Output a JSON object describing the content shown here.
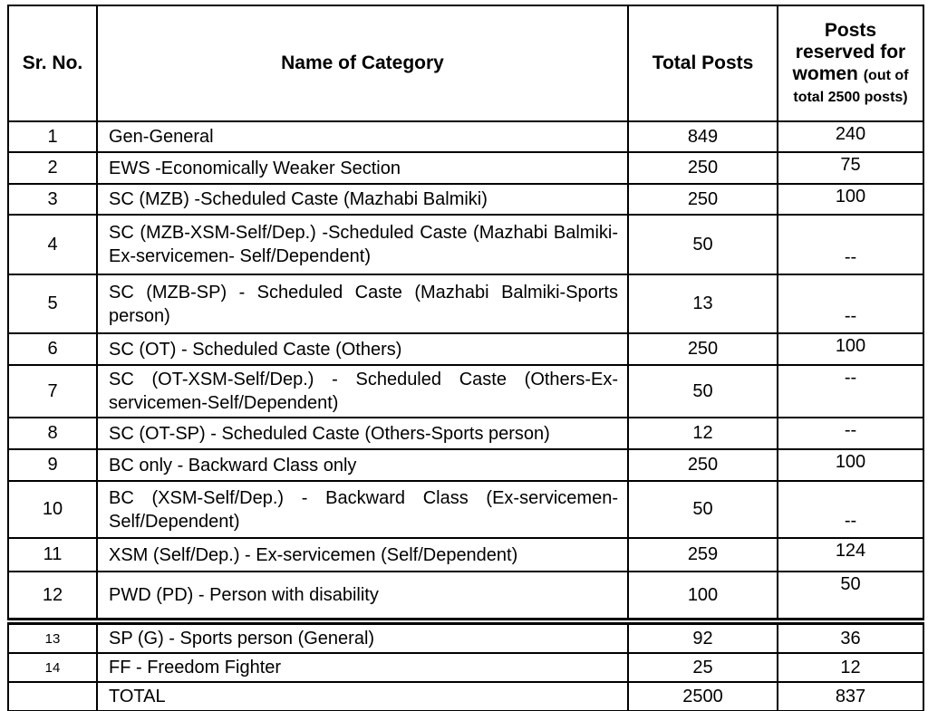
{
  "table": {
    "columns": [
      {
        "label": "Sr. No."
      },
      {
        "label": "Name of Category"
      },
      {
        "label": "Total Posts"
      },
      {
        "label_main": "Posts reserved for women",
        "label_sub": "(out of total 2500 posts)"
      }
    ],
    "rows": [
      {
        "sr": "1",
        "category": "Gen-General",
        "total": "849",
        "women": "240"
      },
      {
        "sr": "2",
        "category": "EWS -Economically Weaker Section",
        "total": "250",
        "women": "75"
      },
      {
        "sr": "3",
        "category": "SC (MZB) -Scheduled Caste (Mazhabi Balmiki)",
        "total": "250",
        "women": "100"
      },
      {
        "sr": "4",
        "category": "SC (MZB-XSM-Self/Dep.) -Scheduled Caste (Mazhabi Balmiki-Ex-servicemen- Self/Dependent)",
        "total": "50",
        "women": "--"
      },
      {
        "sr": "5",
        "category": "SC (MZB-SP) - Scheduled Caste (Mazhabi Balmiki-Sports person)",
        "total": "13",
        "women": "--"
      },
      {
        "sr": "6",
        "category": "SC (OT) - Scheduled Caste (Others)",
        "total": "250",
        "women": "100"
      },
      {
        "sr": "7",
        "category": "SC (OT-XSM-Self/Dep.) - Scheduled Caste (Others-Ex-servicemen-Self/Dependent)",
        "total": "50",
        "women": "--"
      },
      {
        "sr": "8",
        "category": "SC (OT-SP) - Scheduled Caste (Others-Sports person)",
        "total": "12",
        "women": "--"
      },
      {
        "sr": "9",
        "category": "BC only - Backward Class only",
        "total": "250",
        "women": "100"
      },
      {
        "sr": "10",
        "category": "BC (XSM-Self/Dep.) - Backward Class (Ex-servicemen-Self/Dependent)",
        "total": "50",
        "women": "--"
      },
      {
        "sr": "11",
        "category": "XSM (Self/Dep.) - Ex-servicemen (Self/Dependent)",
        "total": "259",
        "women": "124"
      },
      {
        "sr": "12",
        "category": "PWD (PD) - Person with disability",
        "total": "100",
        "women": "50"
      },
      {
        "sr": "13",
        "category": "SP (G) - Sports person (General)",
        "total": "92",
        "women": "36"
      },
      {
        "sr": "14",
        "category": "FF - Freedom Fighter",
        "total": "25",
        "women": "12"
      }
    ],
    "total_row": {
      "sr": "",
      "category": "TOTAL",
      "total": "2500",
      "women": "837"
    }
  }
}
